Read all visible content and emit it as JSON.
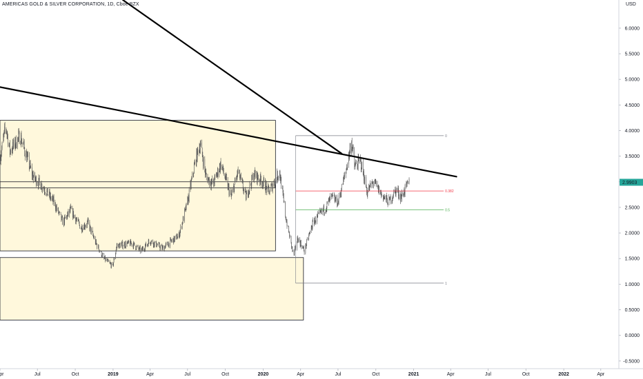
{
  "header": {
    "title": "AMERICAS GOLD & SILVER CORPORATION",
    "interval": "1D",
    "exchange": "Cboe BZX"
  },
  "price_axis": {
    "currency": "USD",
    "last_price_label": "2.9903",
    "colors": {
      "last_price_bg": "#26a69a",
      "last_price_text": "#ffffff"
    }
  },
  "chart_data": {
    "type": "candlestick",
    "symbol": "AMERICAS GOLD & SILVER CORPORATION",
    "interval": "1D",
    "exchange": "Cboe BZX",
    "currency": "USD",
    "ylim": [
      -0.65,
      6.55
    ],
    "xlim": [
      "2018-04-01",
      "2022-05-15"
    ],
    "y_ticks": [
      "-0.5000",
      "0.0000",
      "0.5000",
      "1.0000",
      "1.5000",
      "2.0000",
      "2.5000",
      "3.0000",
      "3.5000",
      "4.0000",
      "4.5000",
      "5.0000",
      "5.5000",
      "6.0000"
    ],
    "x_ticks": [
      {
        "date": "2018-04-01",
        "label": "Apr"
      },
      {
        "date": "2018-07-01",
        "label": "Jul"
      },
      {
        "date": "2018-10-01",
        "label": "Oct"
      },
      {
        "date": "2019-01-01",
        "label": "2019"
      },
      {
        "date": "2019-04-01",
        "label": "Apr"
      },
      {
        "date": "2019-07-01",
        "label": "Jul"
      },
      {
        "date": "2019-10-01",
        "label": "Oct"
      },
      {
        "date": "2020-01-01",
        "label": "2020"
      },
      {
        "date": "2020-04-01",
        "label": "Apr"
      },
      {
        "date": "2020-07-01",
        "label": "Jul"
      },
      {
        "date": "2020-10-01",
        "label": "Oct"
      },
      {
        "date": "2021-01-01",
        "label": "2021"
      },
      {
        "date": "2021-04-01",
        "label": "Apr"
      },
      {
        "date": "2021-07-01",
        "label": "Jul"
      },
      {
        "date": "2021-10-01",
        "label": "Oct"
      },
      {
        "date": "2022-01-01",
        "label": "2022"
      },
      {
        "date": "2022-04-01",
        "label": "Apr"
      }
    ],
    "last_price": 2.9903,
    "price_path": [
      [
        "2018-04-01",
        3.45
      ],
      [
        "2018-04-15",
        4.1
      ],
      [
        "2018-04-25",
        3.6
      ],
      [
        "2018-05-20",
        3.9
      ],
      [
        "2018-06-20",
        3.1
      ],
      [
        "2018-07-15",
        2.9
      ],
      [
        "2018-08-10",
        2.6
      ],
      [
        "2018-09-01",
        2.2
      ],
      [
        "2018-09-20",
        2.45
      ],
      [
        "2018-10-15",
        2.1
      ],
      [
        "2018-11-01",
        2.2
      ],
      [
        "2018-11-20",
        1.8
      ],
      [
        "2018-12-10",
        1.5
      ],
      [
        "2018-12-31",
        1.35
      ],
      [
        "2019-01-10",
        1.75
      ],
      [
        "2019-02-15",
        1.8
      ],
      [
        "2019-03-10",
        1.65
      ],
      [
        "2019-04-01",
        1.85
      ],
      [
        "2019-05-01",
        1.7
      ],
      [
        "2019-06-10",
        1.95
      ],
      [
        "2019-07-01",
        2.6
      ],
      [
        "2019-07-20",
        3.4
      ],
      [
        "2019-08-01",
        3.75
      ],
      [
        "2019-08-15",
        3.1
      ],
      [
        "2019-09-01",
        2.95
      ],
      [
        "2019-09-20",
        3.35
      ],
      [
        "2019-10-15",
        2.7
      ],
      [
        "2019-11-01",
        3.2
      ],
      [
        "2019-11-20",
        2.7
      ],
      [
        "2019-12-10",
        3.15
      ],
      [
        "2019-12-31",
        3.0
      ],
      [
        "2020-01-15",
        2.8
      ],
      [
        "2020-02-10",
        3.2
      ],
      [
        "2020-02-25",
        2.3
      ],
      [
        "2020-03-15",
        1.55
      ],
      [
        "2020-03-25",
        1.9
      ],
      [
        "2020-04-10",
        1.65
      ],
      [
        "2020-05-01",
        2.2
      ],
      [
        "2020-06-01",
        2.5
      ],
      [
        "2020-06-15",
        2.7
      ],
      [
        "2020-07-01",
        2.6
      ],
      [
        "2020-07-20",
        3.2
      ],
      [
        "2020-08-03",
        3.8
      ],
      [
        "2020-08-10",
        3.3
      ],
      [
        "2020-08-25",
        3.4
      ],
      [
        "2020-09-10",
        2.8
      ],
      [
        "2020-09-25",
        3.0
      ],
      [
        "2020-10-15",
        2.75
      ],
      [
        "2020-11-01",
        2.6
      ],
      [
        "2020-11-20",
        2.85
      ],
      [
        "2020-12-01",
        2.7
      ],
      [
        "2020-12-21",
        2.99
      ]
    ],
    "zones": [
      {
        "from": "2018-04-01",
        "to": "2020-01-31",
        "low": 1.65,
        "high": 4.2,
        "fill": "#fff8dc",
        "stroke": "#131722"
      },
      {
        "from": "2018-04-01",
        "to": "2020-04-08",
        "low": 0.3,
        "high": 1.52,
        "fill": "#fff8dc",
        "stroke": "#131722"
      },
      {
        "from": "2018-04-01",
        "to": "2020-01-31",
        "low": 2.88,
        "high": 3.0,
        "fill": "none",
        "stroke": "#131722"
      }
    ],
    "trendlines": [
      {
        "from": [
          "2018-04-01",
          4.85
        ],
        "to": [
          "2021-04-15",
          3.1
        ]
      },
      {
        "from": [
          "2019-01-25",
          6.55
        ],
        "to": [
          "2020-07-10",
          3.55
        ]
      }
    ],
    "fibonacci": [
      {
        "level": "0",
        "price": 3.9,
        "color": "#787b86"
      },
      {
        "level": "0.382",
        "price": 2.82,
        "color": "#f23645"
      },
      {
        "level": "0.5",
        "price": 2.45,
        "color": "#4caf50"
      },
      {
        "level": "1",
        "price": 1.02,
        "color": "#787b86"
      }
    ],
    "fib_range": [
      "2020-03-20",
      "2021-03-15"
    ]
  }
}
